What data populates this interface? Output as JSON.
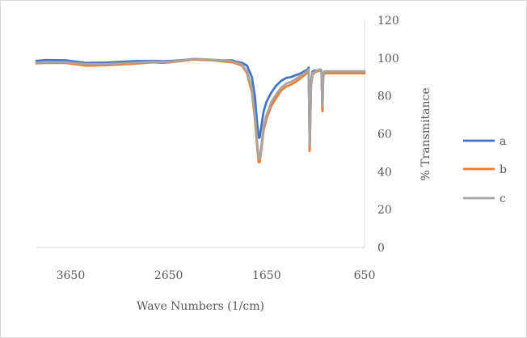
{
  "chart_data": {
    "type": "line",
    "title": "",
    "xlabel": "Wave Numbers (1/cm)",
    "ylabel": "% Transmitance",
    "xlim": [
      4000,
      650
    ],
    "x_reversed": true,
    "ylim": [
      0,
      120
    ],
    "y_axis_position": "right",
    "grid": false,
    "legend_position": "right",
    "x_ticks": [
      3650,
      2650,
      1650,
      650
    ],
    "y_ticks": [
      0,
      20,
      40,
      60,
      80,
      100,
      120
    ],
    "x_tick_labels": [
      "3650",
      "2650",
      "1650",
      "650"
    ],
    "y_tick_labels": [
      "0",
      "20",
      "40",
      "60",
      "80",
      "100",
      "120"
    ],
    "series": [
      {
        "name": "a",
        "color": "#4472c4",
        "points": [
          [
            4000,
            98.5
          ],
          [
            3900,
            99
          ],
          [
            3700,
            98.8
          ],
          [
            3500,
            97.5
          ],
          [
            3300,
            97.6
          ],
          [
            3000,
            98.4
          ],
          [
            2800,
            98.5
          ],
          [
            2700,
            98.3
          ],
          [
            2600,
            98.6
          ],
          [
            2500,
            99
          ],
          [
            2400,
            99.5
          ],
          [
            2300,
            99.3
          ],
          [
            2200,
            99.1
          ],
          [
            2100,
            98.7
          ],
          [
            2000,
            98.8
          ],
          [
            1950,
            98
          ],
          [
            1900,
            97.5
          ],
          [
            1850,
            96
          ],
          [
            1800,
            90
          ],
          [
            1770,
            80
          ],
          [
            1745,
            65
          ],
          [
            1730,
            58
          ],
          [
            1720,
            58
          ],
          [
            1700,
            65
          ],
          [
            1680,
            72
          ],
          [
            1650,
            77
          ],
          [
            1600,
            82
          ],
          [
            1550,
            85.5
          ],
          [
            1500,
            88
          ],
          [
            1450,
            89.5
          ],
          [
            1400,
            90
          ],
          [
            1350,
            91
          ],
          [
            1300,
            92
          ],
          [
            1250,
            93.5
          ],
          [
            1230,
            94
          ],
          [
            1220,
            95
          ],
          [
            1210,
            52
          ],
          [
            1195,
            88
          ],
          [
            1180,
            93
          ],
          [
            1160,
            93.5
          ],
          [
            1130,
            93.5
          ],
          [
            1100,
            94
          ],
          [
            1090,
            93
          ],
          [
            1080,
            72
          ],
          [
            1072,
            91
          ],
          [
            1060,
            93
          ],
          [
            1050,
            93
          ],
          [
            1030,
            93
          ],
          [
            1000,
            93
          ],
          [
            800,
            93
          ],
          [
            700,
            93
          ],
          [
            650,
            93
          ]
        ]
      },
      {
        "name": "b",
        "color": "#ed7d31",
        "points": [
          [
            4000,
            97.2
          ],
          [
            3900,
            97.5
          ],
          [
            3700,
            97.4
          ],
          [
            3500,
            96
          ],
          [
            3300,
            96.2
          ],
          [
            3000,
            97
          ],
          [
            2800,
            97.8
          ],
          [
            2700,
            97.5
          ],
          [
            2600,
            98
          ],
          [
            2500,
            98.6
          ],
          [
            2400,
            99.3
          ],
          [
            2300,
            99
          ],
          [
            2200,
            98.8
          ],
          [
            2100,
            98.2
          ],
          [
            2000,
            97.8
          ],
          [
            1950,
            97
          ],
          [
            1900,
            96
          ],
          [
            1850,
            92
          ],
          [
            1800,
            82
          ],
          [
            1770,
            68
          ],
          [
            1745,
            52
          ],
          [
            1730,
            45
          ],
          [
            1720,
            45
          ],
          [
            1700,
            53
          ],
          [
            1680,
            62
          ],
          [
            1650,
            68
          ],
          [
            1600,
            75
          ],
          [
            1550,
            79
          ],
          [
            1500,
            83
          ],
          [
            1450,
            85
          ],
          [
            1400,
            86
          ],
          [
            1350,
            87.5
          ],
          [
            1300,
            89.5
          ],
          [
            1250,
            91.5
          ],
          [
            1230,
            92.5
          ],
          [
            1220,
            93
          ],
          [
            1210,
            51
          ],
          [
            1195,
            86
          ],
          [
            1180,
            91
          ],
          [
            1160,
            92.5
          ],
          [
            1130,
            93
          ],
          [
            1100,
            93.5
          ],
          [
            1090,
            92.5
          ],
          [
            1080,
            72
          ],
          [
            1072,
            90
          ],
          [
            1060,
            92
          ],
          [
            1050,
            92
          ],
          [
            1030,
            92
          ],
          [
            1000,
            92
          ],
          [
            800,
            92
          ],
          [
            700,
            92
          ],
          [
            650,
            92
          ]
        ]
      },
      {
        "name": "c",
        "color": "#a5a5a5",
        "points": [
          [
            4000,
            97.6
          ],
          [
            3900,
            98
          ],
          [
            3700,
            97.9
          ],
          [
            3500,
            96.8
          ],
          [
            3300,
            96.8
          ],
          [
            3000,
            97.6
          ],
          [
            2800,
            98.2
          ],
          [
            2700,
            97.9
          ],
          [
            2600,
            98.3
          ],
          [
            2500,
            98.9
          ],
          [
            2400,
            99.6
          ],
          [
            2300,
            99.4
          ],
          [
            2200,
            99.1
          ],
          [
            2100,
            98.5
          ],
          [
            2000,
            98.3
          ],
          [
            1950,
            97.5
          ],
          [
            1900,
            96.5
          ],
          [
            1850,
            93
          ],
          [
            1800,
            84
          ],
          [
            1770,
            70
          ],
          [
            1745,
            55
          ],
          [
            1730,
            47
          ],
          [
            1720,
            47
          ],
          [
            1700,
            55
          ],
          [
            1680,
            64
          ],
          [
            1650,
            70
          ],
          [
            1600,
            77
          ],
          [
            1550,
            81
          ],
          [
            1500,
            84.5
          ],
          [
            1450,
            86.5
          ],
          [
            1400,
            87.5
          ],
          [
            1350,
            89
          ],
          [
            1300,
            91
          ],
          [
            1250,
            92.5
          ],
          [
            1230,
            93.5
          ],
          [
            1220,
            94
          ],
          [
            1210,
            54
          ],
          [
            1195,
            87
          ],
          [
            1180,
            92
          ],
          [
            1160,
            93
          ],
          [
            1130,
            93.5
          ],
          [
            1100,
            94
          ],
          [
            1090,
            93.5
          ],
          [
            1080,
            75
          ],
          [
            1072,
            91
          ],
          [
            1060,
            93
          ],
          [
            1050,
            93
          ],
          [
            1030,
            93
          ],
          [
            1000,
            93
          ],
          [
            800,
            93
          ],
          [
            700,
            93
          ],
          [
            650,
            93
          ]
        ]
      }
    ]
  }
}
